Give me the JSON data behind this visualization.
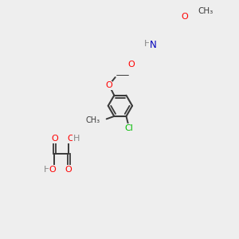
{
  "bg_color": "#eeeeee",
  "bond_color": "#3a3a3a",
  "atom_colors": {
    "O": "#ff0000",
    "N": "#0000bb",
    "Cl": "#00bb00",
    "H": "#888888",
    "C": "#3a3a3a"
  }
}
